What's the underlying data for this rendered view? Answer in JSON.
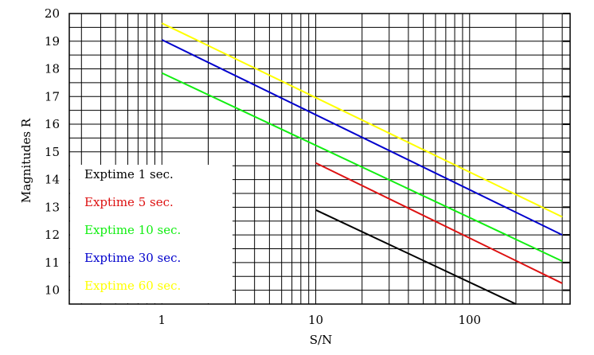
{
  "chart_data": {
    "type": "line",
    "title": "",
    "xlabel": "S/N",
    "ylabel": "Magnitudes R",
    "x_scale": "log",
    "xlim": [
      0.25,
      450
    ],
    "ylim": [
      9.5,
      20
    ],
    "x_tick_labels": [
      "1",
      "10",
      "100"
    ],
    "x_tick_values": [
      1,
      10,
      100
    ],
    "y_tick_labels": [
      "10",
      "11",
      "12",
      "13",
      "14",
      "15",
      "16",
      "17",
      "18",
      "19",
      "20"
    ],
    "y_tick_values": [
      10,
      11,
      12,
      13,
      14,
      15,
      16,
      17,
      18,
      19,
      20
    ],
    "grid": true,
    "legend_position": "bottom-left",
    "series": [
      {
        "name": "Exptime 1 sec.",
        "color": "#000000",
        "x": [
          10,
          200
        ],
        "y": [
          12.9,
          9.5
        ]
      },
      {
        "name": "Exptime 5 sec.",
        "color": "#dd1111",
        "x": [
          10,
          400
        ],
        "y": [
          14.6,
          10.25
        ]
      },
      {
        "name": "Exptime 10 sec.",
        "color": "#11ee11",
        "x": [
          1,
          400
        ],
        "y": [
          17.85,
          11.05
        ]
      },
      {
        "name": "Exptime 30 sec.",
        "color": "#0000cc",
        "x": [
          1,
          400
        ],
        "y": [
          19.05,
          12.0
        ]
      },
      {
        "name": "Exptime 60 sec.",
        "color": "#ffff00",
        "x": [
          1,
          400
        ],
        "y": [
          19.65,
          12.65
        ]
      }
    ]
  }
}
